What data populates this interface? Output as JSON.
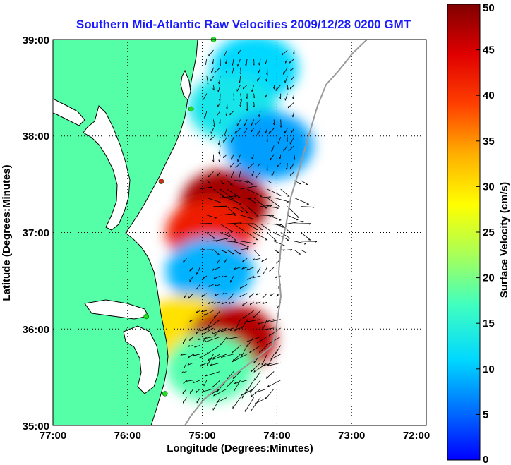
{
  "chart_data": {
    "type": "heatmap",
    "title": "Southern Mid-Atlantic Raw Velocities 2009/12/28 0200 GMT",
    "xlabel": "Longitude (Degrees:Minutes)",
    "ylabel": "Latitude (Degrees:Minutes)",
    "x_ticks": [
      "77:00",
      "76:00",
      "75:00",
      "74:00",
      "73:00",
      "72:00"
    ],
    "y_ticks": [
      "39:00",
      "38:00",
      "37:00",
      "36:00",
      "35:00"
    ],
    "xlim": [
      -77,
      -72
    ],
    "ylim": [
      35,
      39
    ],
    "grid": true,
    "colorbar": {
      "label": "Surface Velocity (cm/s)",
      "ticks": [
        "50",
        "45",
        "40",
        "35",
        "30",
        "25",
        "20",
        "15",
        "10",
        "5",
        "0"
      ],
      "range": [
        0,
        50
      ]
    },
    "regions": [
      {
        "lat": 38.7,
        "lon": -74.3,
        "speed": 11
      },
      {
        "lat": 38.3,
        "lon": -74.6,
        "speed": 13
      },
      {
        "lat": 37.9,
        "lon": -74.1,
        "speed": 8
      },
      {
        "lat": 37.3,
        "lon": -74.7,
        "speed": 48
      },
      {
        "lat": 37.0,
        "lon": -74.9,
        "speed": 42
      },
      {
        "lat": 36.6,
        "lon": -74.9,
        "speed": 9
      },
      {
        "lat": 36.0,
        "lon": -75.2,
        "speed": 30
      },
      {
        "lat": 35.9,
        "lon": -74.6,
        "speed": 47
      },
      {
        "lat": 35.6,
        "lon": -74.9,
        "speed": 18
      }
    ],
    "stations": [
      {
        "lat": 39.0,
        "lon": -74.85,
        "status": "active"
      },
      {
        "lat": 38.28,
        "lon": -75.15,
        "status": "active"
      },
      {
        "lat": 37.53,
        "lon": -75.55,
        "status": "inactive"
      },
      {
        "lat": 36.13,
        "lon": -75.75,
        "status": "active"
      },
      {
        "lat": 35.33,
        "lon": -75.5,
        "status": "active"
      }
    ]
  },
  "colors": {
    "land": "#54ffa8",
    "title": "#1a1aff",
    "station_active": "#22dd22",
    "station_inactive": "#dd2222"
  }
}
